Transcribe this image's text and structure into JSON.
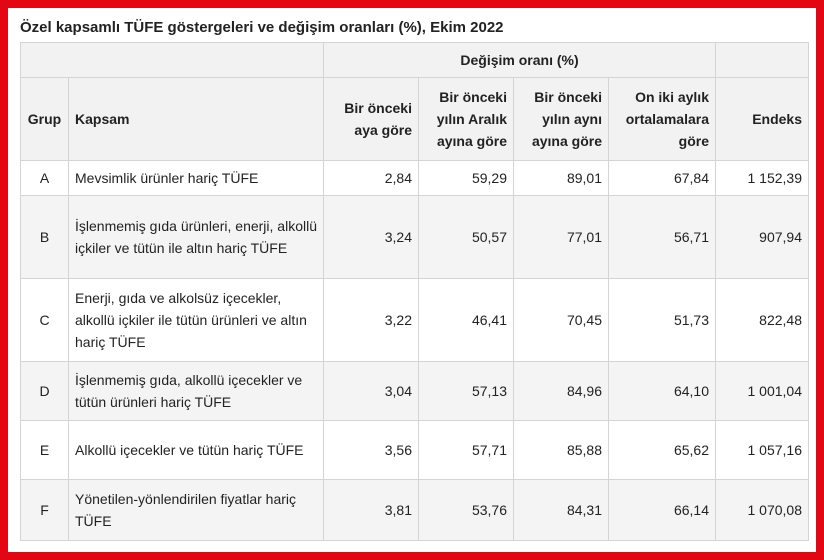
{
  "title": "Özel kapsamlı TÜFE göstergeleri ve değişim oranları (%), Ekim 2022",
  "table": {
    "group_header": "Değişim oranı (%)",
    "columns": [
      "Grup",
      "Kapsam",
      "Bir önceki aya göre",
      "Bir önceki yılın Aralık ayına göre",
      "Bir önceki yılın aynı ayına göre",
      "On iki aylık ortalamalara göre",
      "Endeks"
    ],
    "rows": [
      [
        "A",
        "Mevsimlik ürünler hariç TÜFE",
        "2,84",
        "59,29",
        "89,01",
        "67,84",
        "1 152,39"
      ],
      [
        "B",
        "İşlenmemiş gıda ürünleri, enerji, alkollü içkiler ve tütün ile altın hariç TÜFE",
        "3,24",
        "50,57",
        "77,01",
        "56,71",
        "907,94"
      ],
      [
        "C",
        "Enerji, gıda ve alkolsüz içecekler, alkollü içkiler ile tütün ürünleri ve altın hariç TÜFE",
        "3,22",
        "46,41",
        "70,45",
        "51,73",
        "822,48"
      ],
      [
        "D",
        "İşlenmemiş gıda, alkollü içecekler ve tütün ürünleri hariç TÜFE",
        "3,04",
        "57,13",
        "84,96",
        "64,10",
        "1 001,04"
      ],
      [
        "E",
        "Alkollü içecekler ve tütün hariç TÜFE",
        "3,56",
        "57,71",
        "85,88",
        "65,62",
        "1 057,16"
      ],
      [
        "F",
        "Yönetilen-yönlendirilen fiyatlar hariç TÜFE",
        "3,81",
        "53,76",
        "84,31",
        "66,14",
        "1 070,08"
      ]
    ]
  }
}
